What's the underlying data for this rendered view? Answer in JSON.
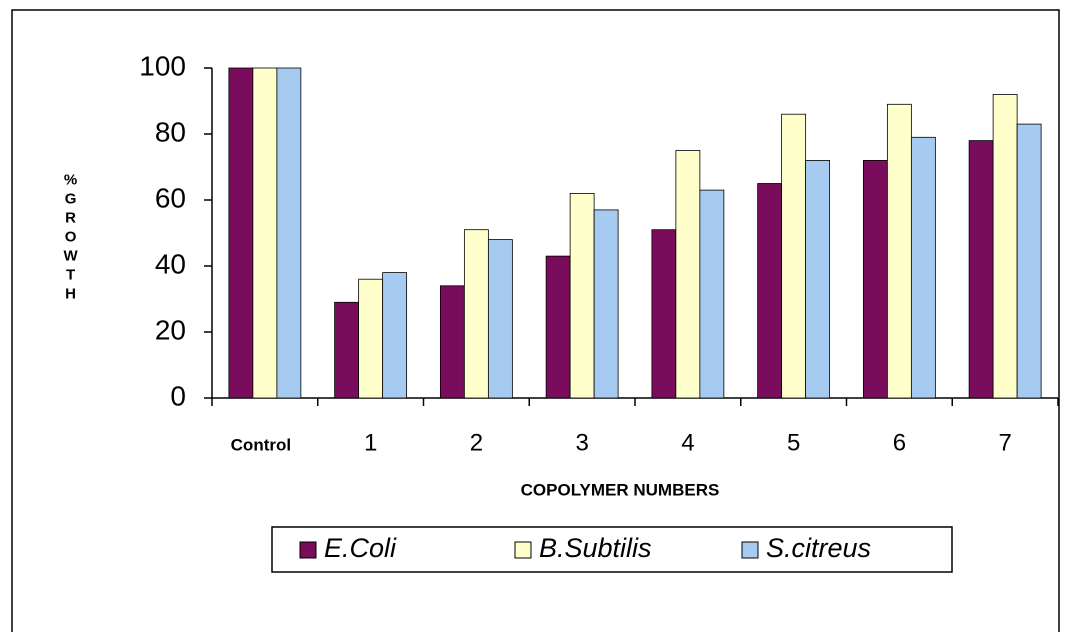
{
  "chart_data": {
    "type": "bar",
    "y_label": "%GROWTH",
    "x_label": "COPOLYMER NUMBERS",
    "categories": [
      "Control",
      "1",
      "2",
      "3",
      "4",
      "5",
      "6",
      "7"
    ],
    "series": [
      {
        "name": "E.Coli",
        "color": "#7a0c5c",
        "values": [
          100,
          29,
          34,
          43,
          51,
          65,
          72,
          78
        ]
      },
      {
        "name": "B.Subtilis",
        "color": "#ffffcc",
        "values": [
          100,
          36,
          51,
          62,
          75,
          86,
          89,
          92
        ]
      },
      {
        "name": "S.citreus",
        "color": "#a6caf0",
        "values": [
          100,
          38,
          48,
          57,
          63,
          72,
          79,
          83
        ]
      }
    ],
    "ylim": [
      0,
      100
    ],
    "yticks": [
      0,
      20,
      40,
      60,
      80,
      100
    ],
    "grid": false,
    "legend": "bottom"
  }
}
